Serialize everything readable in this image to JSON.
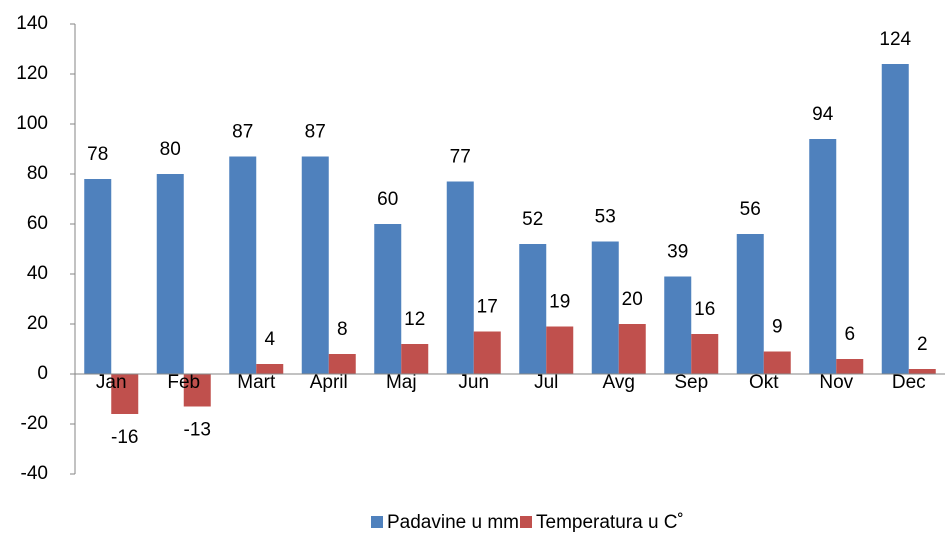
{
  "chart_data": {
    "type": "bar",
    "categories": [
      "Jan",
      "Feb",
      "Mart",
      "April",
      "Maj",
      "Jun",
      "Jul",
      "Avg",
      "Sep",
      "Okt",
      "Nov",
      "Dec"
    ],
    "series": [
      {
        "name": "Padavine u mm",
        "color": "#4f81bd",
        "values": [
          78,
          80,
          87,
          87,
          60,
          77,
          52,
          53,
          39,
          56,
          94,
          124
        ]
      },
      {
        "name": "Temperatura u C˚",
        "color": "#c0504d",
        "values": [
          -16,
          -13,
          4,
          8,
          12,
          17,
          19,
          20,
          16,
          9,
          6,
          2
        ]
      }
    ],
    "ylim": [
      -40,
      140
    ],
    "yticks": [
      -40,
      -20,
      0,
      20,
      40,
      60,
      80,
      100,
      120,
      140
    ],
    "grid": false,
    "legend": "bottom"
  }
}
